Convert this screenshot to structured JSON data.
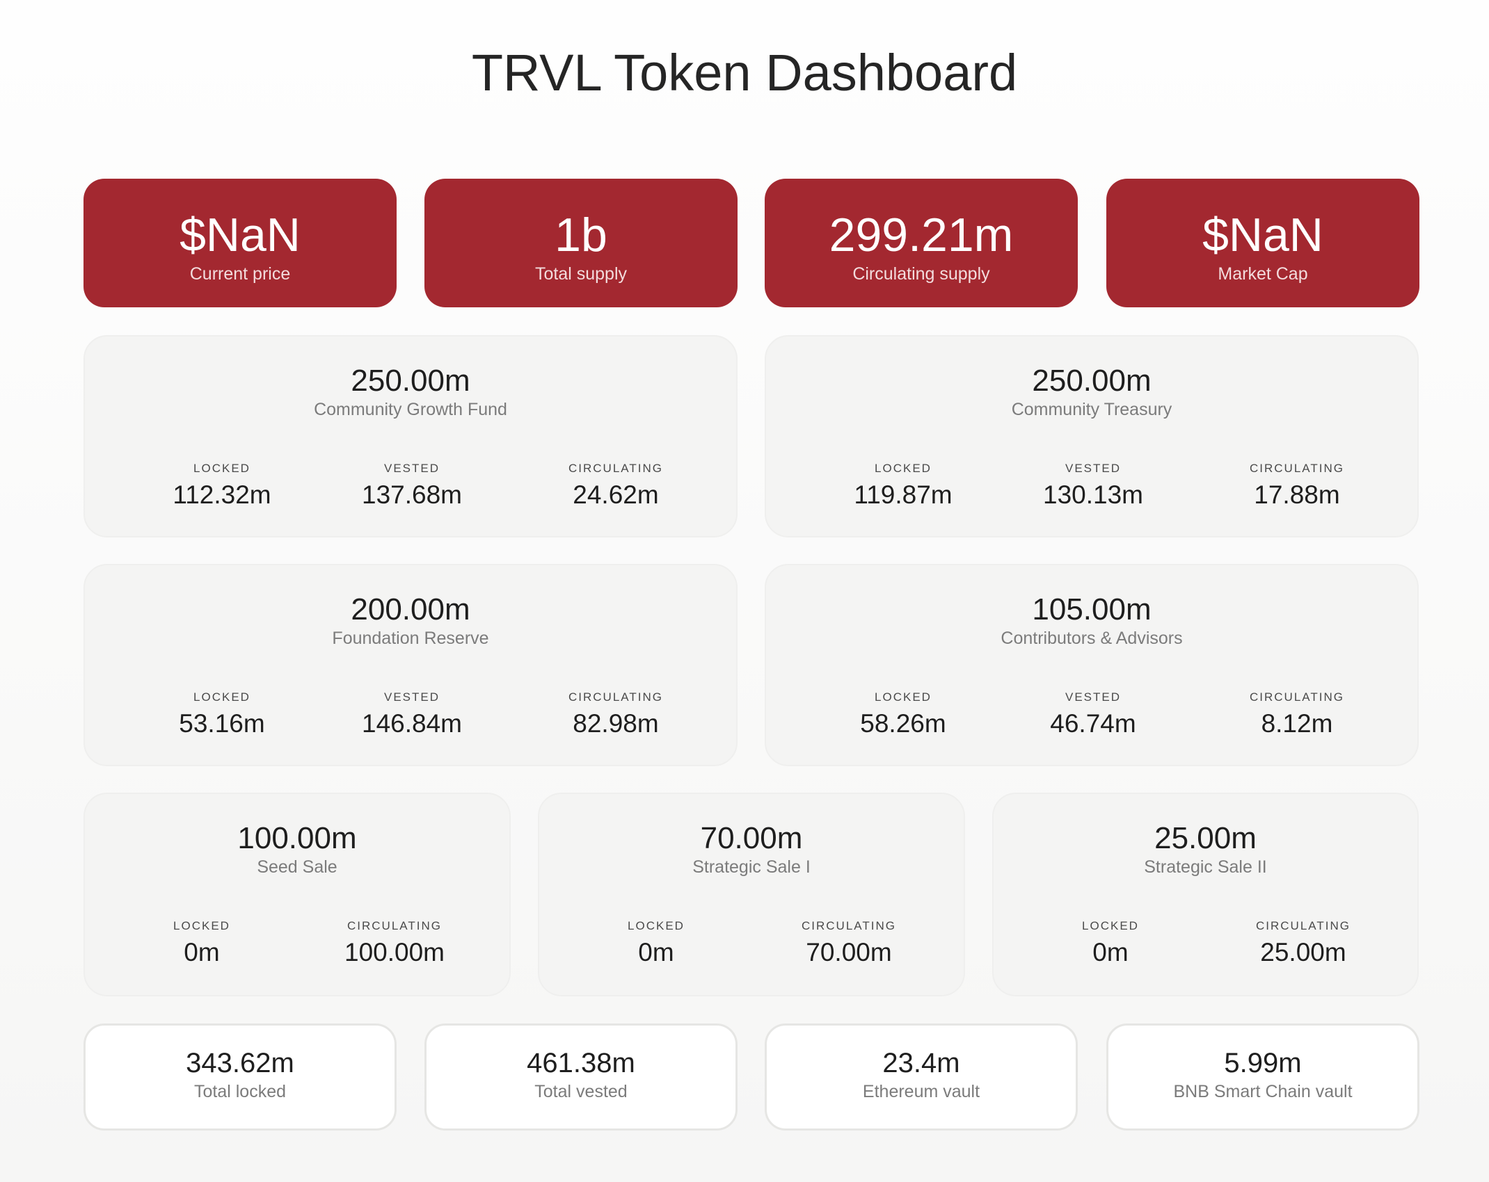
{
  "title": "TRVL Token Dashboard",
  "top_stats": [
    {
      "value": "$NaN",
      "label": "Current price"
    },
    {
      "value": "1b",
      "label": "Total supply"
    },
    {
      "value": "299.21m",
      "label": "Circulating supply"
    },
    {
      "value": "$NaN",
      "label": "Market Cap"
    }
  ],
  "allocations": [
    {
      "amount": "250.00m",
      "name": "Community Growth Fund",
      "stats": [
        {
          "key": "LOCKED",
          "value": "112.32m"
        },
        {
          "key": "VESTED",
          "value": "137.68m"
        },
        {
          "key": "CIRCULATING",
          "value": "24.62m"
        }
      ]
    },
    {
      "amount": "250.00m",
      "name": "Community Treasury",
      "stats": [
        {
          "key": "LOCKED",
          "value": "119.87m"
        },
        {
          "key": "VESTED",
          "value": "130.13m"
        },
        {
          "key": "CIRCULATING",
          "value": "17.88m"
        }
      ]
    },
    {
      "amount": "200.00m",
      "name": "Foundation Reserve",
      "stats": [
        {
          "key": "LOCKED",
          "value": "53.16m"
        },
        {
          "key": "VESTED",
          "value": "146.84m"
        },
        {
          "key": "CIRCULATING",
          "value": "82.98m"
        }
      ]
    },
    {
      "amount": "105.00m",
      "name": "Contributors & Advisors",
      "stats": [
        {
          "key": "LOCKED",
          "value": "58.26m"
        },
        {
          "key": "VESTED",
          "value": "46.74m"
        },
        {
          "key": "CIRCULATING",
          "value": "8.12m"
        }
      ]
    },
    {
      "amount": "100.00m",
      "name": "Seed Sale",
      "stats": [
        {
          "key": "LOCKED",
          "value": "0m"
        },
        {
          "key": "CIRCULATING",
          "value": "100.00m"
        }
      ]
    },
    {
      "amount": "70.00m",
      "name": "Strategic Sale I",
      "stats": [
        {
          "key": "LOCKED",
          "value": "0m"
        },
        {
          "key": "CIRCULATING",
          "value": "70.00m"
        }
      ]
    },
    {
      "amount": "25.00m",
      "name": "Strategic Sale II",
      "stats": [
        {
          "key": "LOCKED",
          "value": "0m"
        },
        {
          "key": "CIRCULATING",
          "value": "25.00m"
        }
      ]
    }
  ],
  "bottom_stats": [
    {
      "value": "343.62m",
      "label": "Total locked"
    },
    {
      "value": "461.38m",
      "label": "Total vested"
    },
    {
      "value": "23.4m",
      "label": "Ethereum vault"
    },
    {
      "value": "5.99m",
      "label": "BNB Smart Chain vault"
    }
  ]
}
